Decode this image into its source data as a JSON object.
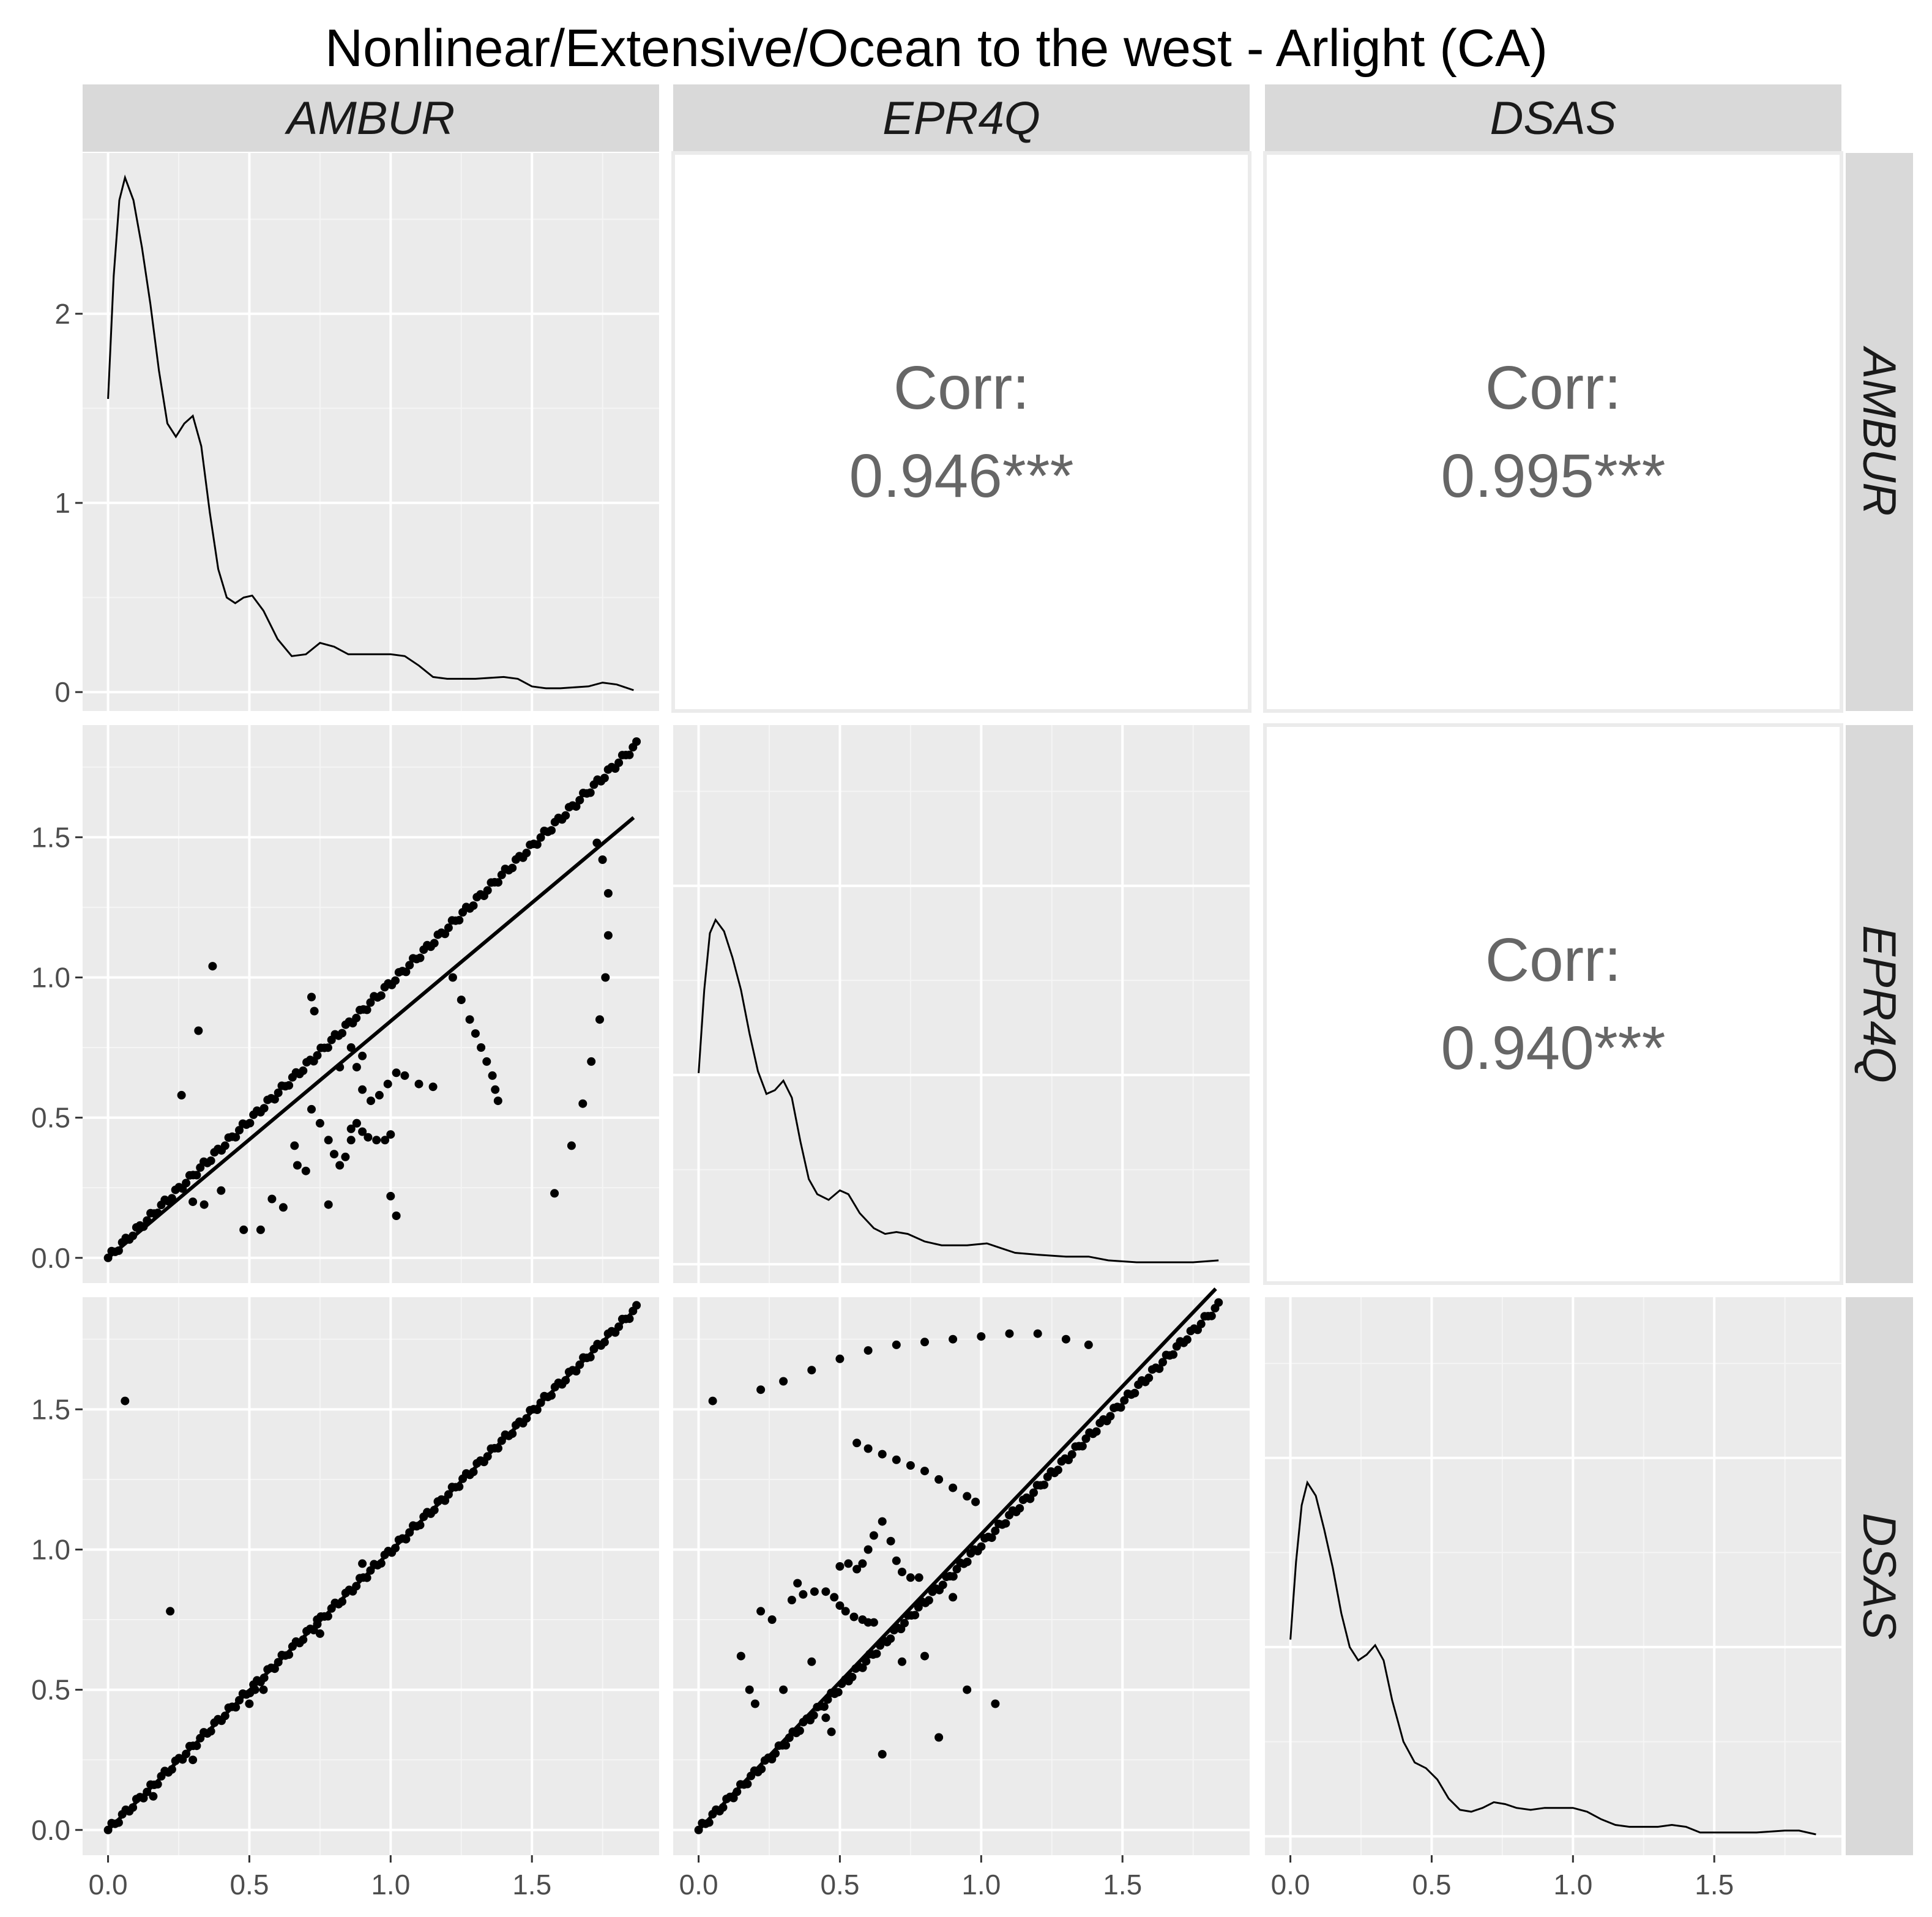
{
  "title": "Nonlinear/Extensive/Ocean to the west - Arlight (CA)",
  "variables": [
    "AMBUR",
    "EPR4Q",
    "DSAS"
  ],
  "chart_data": {
    "type": "scatter-matrix",
    "title": "Nonlinear/Extensive/Ocean to the west - Arlight (CA)",
    "variables": [
      "AMBUR",
      "EPR4Q",
      "DSAS"
    ],
    "x_range": [
      -0.09,
      1.95
    ],
    "x_ticks": [
      0.0,
      0.5,
      1.0,
      1.5
    ],
    "x_tick_labels": [
      "0.0",
      "0.5",
      "1.0",
      "1.5"
    ],
    "density_ylim": [
      -0.1,
      2.85
    ],
    "density_ticks": [
      0,
      1,
      2
    ],
    "density_tick_labels": [
      "0",
      "1",
      "2"
    ],
    "scatter_ylim": [
      -0.09,
      1.9
    ],
    "scatter_ticks": [
      0.0,
      0.5,
      1.0,
      1.5
    ],
    "scatter_tick_labels": [
      "0.0",
      "0.5",
      "1.0",
      "1.5"
    ],
    "densities": {
      "AMBUR": [
        [
          0.0,
          1.55
        ],
        [
          0.02,
          2.2
        ],
        [
          0.04,
          2.6
        ],
        [
          0.06,
          2.72
        ],
        [
          0.09,
          2.6
        ],
        [
          0.12,
          2.35
        ],
        [
          0.15,
          2.05
        ],
        [
          0.18,
          1.7
        ],
        [
          0.21,
          1.42
        ],
        [
          0.24,
          1.35
        ],
        [
          0.27,
          1.42
        ],
        [
          0.3,
          1.46
        ],
        [
          0.33,
          1.3
        ],
        [
          0.36,
          0.95
        ],
        [
          0.39,
          0.65
        ],
        [
          0.42,
          0.5
        ],
        [
          0.45,
          0.47
        ],
        [
          0.48,
          0.5
        ],
        [
          0.51,
          0.51
        ],
        [
          0.55,
          0.43
        ],
        [
          0.6,
          0.28
        ],
        [
          0.65,
          0.19
        ],
        [
          0.7,
          0.2
        ],
        [
          0.75,
          0.26
        ],
        [
          0.8,
          0.24
        ],
        [
          0.85,
          0.2
        ],
        [
          0.9,
          0.2
        ],
        [
          0.95,
          0.2
        ],
        [
          1.0,
          0.2
        ],
        [
          1.05,
          0.19
        ],
        [
          1.1,
          0.14
        ],
        [
          1.15,
          0.08
        ],
        [
          1.2,
          0.07
        ],
        [
          1.3,
          0.07
        ],
        [
          1.4,
          0.08
        ],
        [
          1.45,
          0.07
        ],
        [
          1.5,
          0.03
        ],
        [
          1.55,
          0.02
        ],
        [
          1.6,
          0.02
        ],
        [
          1.7,
          0.03
        ],
        [
          1.75,
          0.05
        ],
        [
          1.8,
          0.04
        ],
        [
          1.86,
          0.01
        ]
      ],
      "EPR4Q": [
        [
          0.0,
          1.01
        ],
        [
          0.02,
          1.45
        ],
        [
          0.04,
          1.75
        ],
        [
          0.06,
          1.82
        ],
        [
          0.09,
          1.76
        ],
        [
          0.12,
          1.62
        ],
        [
          0.15,
          1.45
        ],
        [
          0.18,
          1.22
        ],
        [
          0.21,
          1.02
        ],
        [
          0.24,
          0.9
        ],
        [
          0.27,
          0.92
        ],
        [
          0.3,
          0.97
        ],
        [
          0.33,
          0.88
        ],
        [
          0.36,
          0.65
        ],
        [
          0.39,
          0.45
        ],
        [
          0.42,
          0.37
        ],
        [
          0.46,
          0.34
        ],
        [
          0.5,
          0.39
        ],
        [
          0.53,
          0.37
        ],
        [
          0.57,
          0.27
        ],
        [
          0.62,
          0.19
        ],
        [
          0.66,
          0.16
        ],
        [
          0.7,
          0.17
        ],
        [
          0.74,
          0.16
        ],
        [
          0.8,
          0.12
        ],
        [
          0.86,
          0.1
        ],
        [
          0.95,
          0.1
        ],
        [
          1.02,
          0.11
        ],
        [
          1.06,
          0.09
        ],
        [
          1.12,
          0.06
        ],
        [
          1.2,
          0.05
        ],
        [
          1.3,
          0.04
        ],
        [
          1.38,
          0.04
        ],
        [
          1.45,
          0.02
        ],
        [
          1.55,
          0.01
        ],
        [
          1.65,
          0.01
        ],
        [
          1.75,
          0.01
        ],
        [
          1.84,
          0.02
        ]
      ],
      "DSAS": [
        [
          0.0,
          1.04
        ],
        [
          0.02,
          1.45
        ],
        [
          0.04,
          1.75
        ],
        [
          0.06,
          1.87
        ],
        [
          0.09,
          1.8
        ],
        [
          0.12,
          1.62
        ],
        [
          0.15,
          1.42
        ],
        [
          0.18,
          1.18
        ],
        [
          0.21,
          1.0
        ],
        [
          0.24,
          0.93
        ],
        [
          0.27,
          0.96
        ],
        [
          0.3,
          1.01
        ],
        [
          0.33,
          0.93
        ],
        [
          0.36,
          0.72
        ],
        [
          0.4,
          0.5
        ],
        [
          0.44,
          0.39
        ],
        [
          0.48,
          0.36
        ],
        [
          0.52,
          0.3
        ],
        [
          0.56,
          0.2
        ],
        [
          0.6,
          0.14
        ],
        [
          0.64,
          0.13
        ],
        [
          0.68,
          0.15
        ],
        [
          0.72,
          0.18
        ],
        [
          0.76,
          0.17
        ],
        [
          0.8,
          0.15
        ],
        [
          0.85,
          0.14
        ],
        [
          0.9,
          0.15
        ],
        [
          0.95,
          0.15
        ],
        [
          1.0,
          0.15
        ],
        [
          1.05,
          0.13
        ],
        [
          1.1,
          0.09
        ],
        [
          1.15,
          0.06
        ],
        [
          1.2,
          0.05
        ],
        [
          1.3,
          0.05
        ],
        [
          1.35,
          0.06
        ],
        [
          1.4,
          0.05
        ],
        [
          1.45,
          0.02
        ],
        [
          1.55,
          0.02
        ],
        [
          1.65,
          0.02
        ],
        [
          1.75,
          0.03
        ],
        [
          1.8,
          0.03
        ],
        [
          1.86,
          0.01
        ]
      ]
    },
    "correlations": [
      {
        "row": "AMBUR",
        "col": "EPR4Q",
        "label": "Corr:",
        "value": "0.946***"
      },
      {
        "row": "AMBUR",
        "col": "DSAS",
        "label": "Corr:",
        "value": "0.995***"
      },
      {
        "row": "EPR4Q",
        "col": "DSAS",
        "label": "Corr:",
        "value": "0.940***"
      }
    ],
    "scatter_panels": [
      {
        "x": "AMBUR",
        "y": "EPR4Q",
        "fit_line": {
          "x": [
            0.0,
            1.86
          ],
          "y": [
            0.0,
            1.57
          ]
        },
        "main_band": {
          "x0": 0.0,
          "x1": 1.87,
          "y0": 0.0,
          "y1": 1.83,
          "n": 150
        },
        "arcs": [
          {
            "x": [
              1.58,
              1.64,
              1.68,
              1.71,
              1.74,
              1.76,
              1.77,
              1.77,
              1.75,
              1.73
            ],
            "y": [
              0.23,
              0.4,
              0.55,
              0.7,
              0.85,
              1.0,
              1.15,
              1.3,
              1.42,
              1.48
            ]
          },
          {
            "x": [
              1.22,
              1.25,
              1.28,
              1.3,
              1.32,
              1.34,
              1.36,
              1.37,
              1.38
            ],
            "y": [
              1.0,
              0.92,
              0.85,
              0.8,
              0.75,
              0.7,
              0.65,
              0.6,
              0.56
            ]
          },
          {
            "x": [
              0.72,
              0.75,
              0.78,
              0.8,
              0.82,
              0.84,
              0.86,
              0.88
            ],
            "y": [
              0.53,
              0.48,
              0.42,
              0.37,
              0.33,
              0.36,
              0.42,
              0.48
            ]
          },
          {
            "x": [
              0.86,
              0.88,
              0.9,
              0.93,
              0.96,
              0.99,
              1.02,
              1.05,
              1.1,
              1.15
            ],
            "y": [
              0.75,
              0.68,
              0.6,
              0.56,
              0.58,
              0.62,
              0.66,
              0.65,
              0.62,
              0.61
            ]
          },
          {
            "x": [
              0.88,
              0.9,
              0.92,
              0.95,
              0.98,
              1.0
            ],
            "y": [
              0.48,
              0.45,
              0.43,
              0.42,
              0.42,
              0.44
            ]
          }
        ],
        "outliers": {
          "x": [
            0.26,
            0.32,
            0.37,
            0.48,
            0.54,
            0.58,
            0.62,
            0.66,
            0.67,
            0.72,
            0.73,
            0.78,
            0.82,
            0.86,
            0.9,
            1.0,
            1.02,
            0.3,
            0.34,
            0.4,
            0.7
          ],
          "y": [
            0.58,
            0.81,
            1.04,
            0.1,
            0.1,
            0.21,
            0.18,
            0.4,
            0.33,
            0.93,
            0.88,
            0.19,
            0.68,
            0.46,
            0.72,
            0.22,
            0.15,
            0.2,
            0.19,
            0.24,
            0.31
          ]
        }
      },
      {
        "x": "AMBUR",
        "y": "DSAS",
        "fit_line": {
          "x": [
            0.0,
            1.86
          ],
          "y": [
            0.0,
            1.85
          ]
        },
        "main_band": {
          "x0": 0.0,
          "x1": 1.87,
          "y0": 0.0,
          "y1": 1.86,
          "n": 150
        },
        "arcs": [],
        "outliers": {
          "x": [
            0.06,
            0.22,
            0.5,
            0.52,
            0.55,
            0.74,
            0.75,
            0.9,
            0.16,
            0.3
          ],
          "y": [
            1.53,
            0.78,
            0.45,
            0.5,
            0.5,
            0.75,
            0.7,
            0.95,
            0.12,
            0.25
          ]
        }
      },
      {
        "x": "EPR4Q",
        "y": "DSAS",
        "fit_line": {
          "x": [
            0.0,
            1.83
          ],
          "y": [
            0.0,
            1.93
          ]
        },
        "main_band": {
          "x0": 0.0,
          "x1": 1.84,
          "y0": 0.0,
          "y1": 1.87,
          "n": 150
        },
        "arcs": [
          {
            "x": [
              0.22,
              0.3,
              0.4,
              0.5,
              0.6,
              0.7,
              0.8,
              0.9,
              1.0,
              1.1,
              1.2,
              1.3,
              1.38
            ],
            "y": [
              1.57,
              1.6,
              1.64,
              1.68,
              1.71,
              1.73,
              1.74,
              1.75,
              1.76,
              1.77,
              1.77,
              1.75,
              1.73
            ]
          },
          {
            "x": [
              0.56,
              0.6,
              0.65,
              0.7,
              0.75,
              0.8,
              0.85,
              0.9,
              0.95,
              0.98
            ],
            "y": [
              1.38,
              1.36,
              1.34,
              1.32,
              1.3,
              1.28,
              1.25,
              1.22,
              1.19,
              1.17
            ]
          },
          {
            "x": [
              0.33,
              0.37,
              0.41,
              0.45,
              0.48,
              0.5,
              0.52,
              0.55,
              0.58,
              0.6,
              0.62
            ],
            "y": [
              0.82,
              0.84,
              0.85,
              0.85,
              0.83,
              0.8,
              0.78,
              0.76,
              0.75,
              0.74,
              0.74
            ]
          },
          {
            "x": [
              0.5,
              0.53,
              0.56,
              0.58,
              0.6,
              0.62,
              0.65,
              0.68,
              0.7,
              0.72,
              0.75,
              0.78
            ],
            "y": [
              0.94,
              0.95,
              0.93,
              0.95,
              1.0,
              1.05,
              1.1,
              1.03,
              0.96,
              0.92,
              0.9,
              0.9
            ]
          }
        ],
        "outliers": {
          "x": [
            0.05,
            0.15,
            0.18,
            0.2,
            0.22,
            0.26,
            0.3,
            0.35,
            0.4,
            0.65,
            0.72,
            0.8,
            0.85,
            0.9,
            0.95,
            1.05,
            0.45,
            0.47
          ],
          "y": [
            1.53,
            0.62,
            0.5,
            0.45,
            0.78,
            0.75,
            0.5,
            0.88,
            0.6,
            0.27,
            0.6,
            0.62,
            0.33,
            0.83,
            0.5,
            0.45,
            0.4,
            0.35
          ]
        }
      }
    ]
  }
}
